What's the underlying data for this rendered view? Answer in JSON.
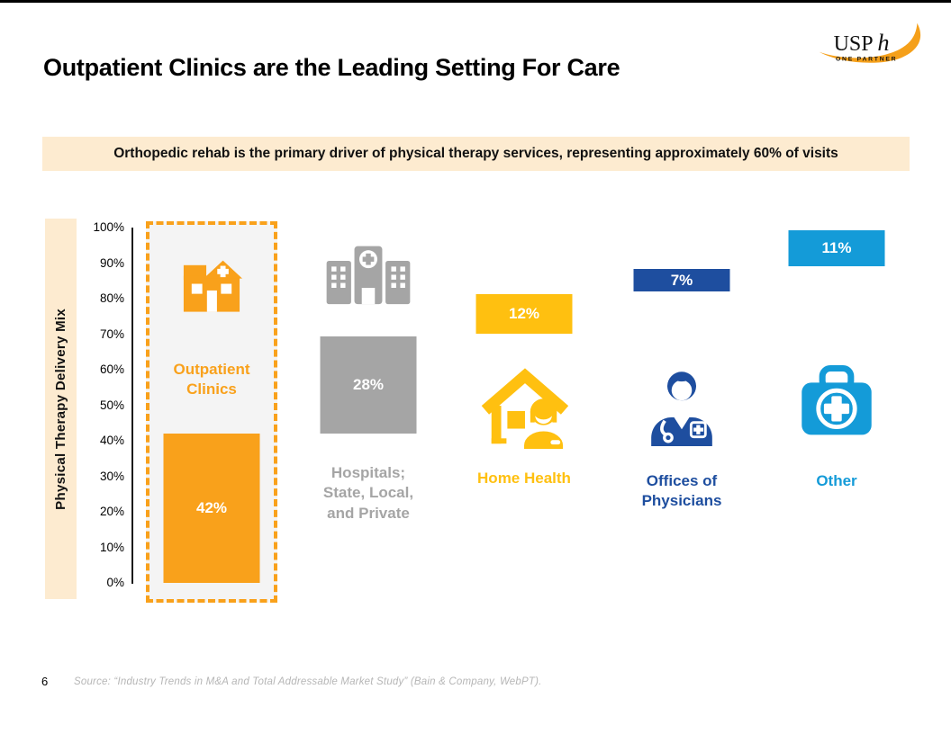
{
  "slide": {
    "title": "Outpatient Clinics are the Leading Setting For Care",
    "banner": "Orthopedic rehab is the primary driver of physical therapy services, representing approximately 60% of visits",
    "page_number": "6",
    "source": "Source: “Industry Trends in M&A and Total Addressable Market Study” (Bain & Company, WebPT)."
  },
  "logo": {
    "text_main": "USP",
    "text_italic": "h",
    "tagline": "ONE PARTNER",
    "swoosh_color": "#F5A01A"
  },
  "chart_data": {
    "type": "bar",
    "variant": "percent-stacked-displayed-across-columns",
    "title": "Physical Therapy Delivery Mix",
    "ylabel": "Physical Therapy Delivery Mix",
    "xlabel": "",
    "categories": [
      "Outpatient Clinics",
      "Hospitals; State, Local, and Private",
      "Home Health",
      "Offices of Physicians",
      "Other"
    ],
    "values": [
      42,
      28,
      12,
      7,
      11
    ],
    "value_labels": [
      "42%",
      "28%",
      "12%",
      "7%",
      "11%"
    ],
    "colors": [
      "#F9A11B",
      "#A5A5A5",
      "#FFC010",
      "#1E4E9F",
      "#149BD8"
    ],
    "icons": [
      "clinic-building-icon",
      "hospital-icon",
      "home-health-icon",
      "physician-icon",
      "first-aid-kit-icon"
    ],
    "ylim": [
      0,
      100
    ],
    "yticks": [
      "100%",
      "90%",
      "80%",
      "70%",
      "60%",
      "50%",
      "40%",
      "30%",
      "20%",
      "10%",
      "0%"
    ],
    "grid": false,
    "legend": false,
    "highlighted_category": "Outpatient Clinics",
    "highlight_style": "dashed-orange-outline",
    "accent_cream": "#FDEBD0",
    "highlight_bg": "#F4F4F4"
  }
}
